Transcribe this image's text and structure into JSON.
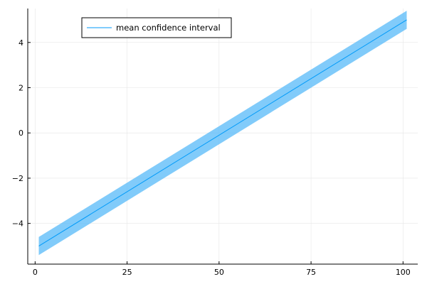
{
  "chart_data": {
    "type": "line",
    "title": "",
    "xlabel": "",
    "ylabel": "",
    "xlim": [
      -2.0,
      104.0
    ],
    "ylim": [
      -5.8,
      5.5
    ],
    "x_ticks": [
      0,
      25,
      50,
      75,
      100
    ],
    "y_ticks": [
      -4,
      -2,
      0,
      2,
      4
    ],
    "x_tick_labels": [
      "0",
      "25",
      "50",
      "75",
      "100"
    ],
    "y_tick_labels": [
      "−4",
      "−2",
      "0",
      "2",
      "4"
    ],
    "grid": true,
    "legend_position": "top-left",
    "series": [
      {
        "name": "mean confidence interval",
        "x": [
          1,
          101
        ],
        "values": [
          -5.0,
          5.0
        ],
        "band_lower": [
          -5.4,
          4.6
        ],
        "band_upper": [
          -4.6,
          5.4
        ],
        "line_color": "#009af9",
        "band_color": "#5ebcf9"
      }
    ]
  }
}
